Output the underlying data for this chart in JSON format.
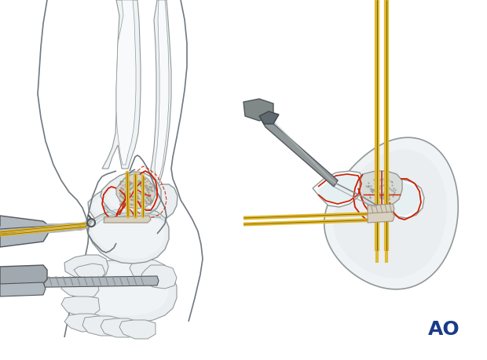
{
  "bg_color": "#ffffff",
  "ao_text": "AO",
  "ao_color": "#1a3a8a",
  "ao_fontsize": 18,
  "fig_width": 6.2,
  "fig_height": 4.59,
  "dpi": 100
}
